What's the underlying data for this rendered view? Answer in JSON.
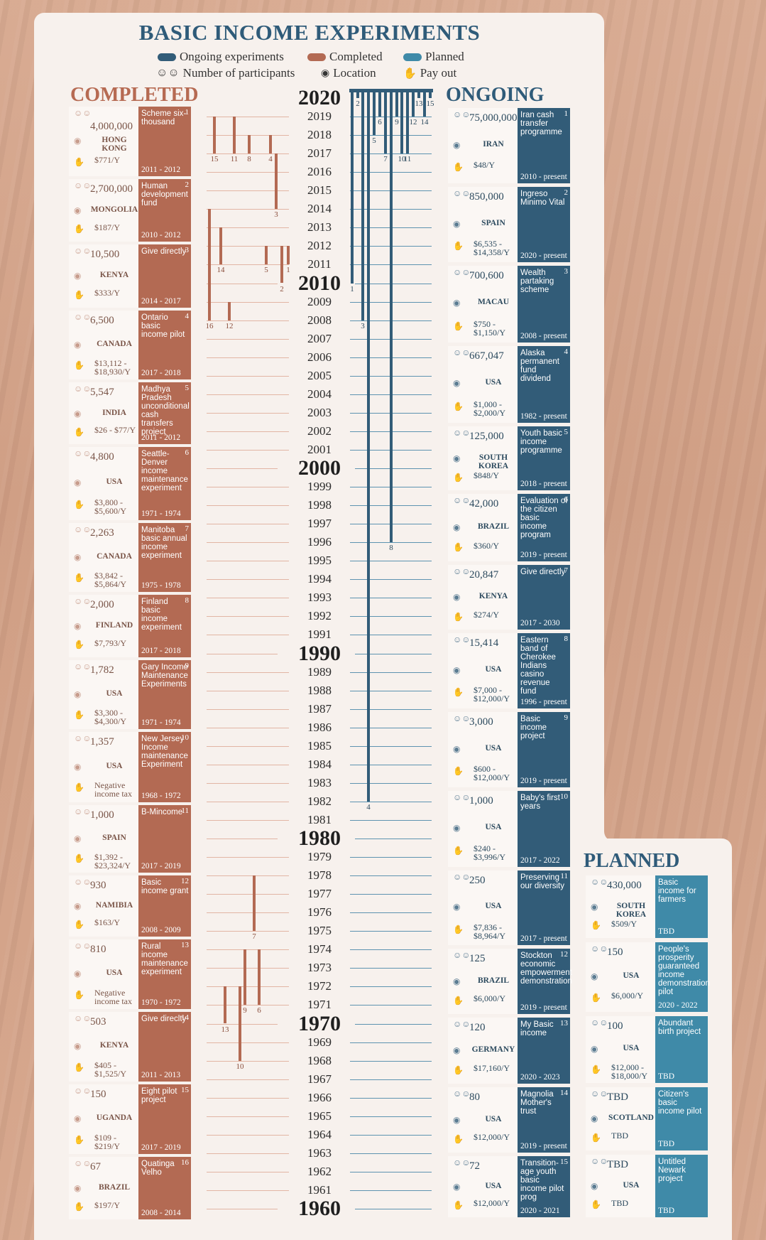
{
  "title": "BASIC INCOME EXPERIMENTS",
  "legend": {
    "ongoing": "Ongoing experiments",
    "completed": "Completed",
    "planned": "Planned",
    "participants": "Number of participants",
    "location": "Location",
    "payout": "Pay out"
  },
  "colors": {
    "completed": "#b36a53",
    "ongoing": "#325c78",
    "planned": "#3f8aa8"
  },
  "icons": [
    "people-icon",
    "location-pin-icon",
    "money-hand-icon"
  ],
  "headers": {
    "completed": "COMPLETED",
    "ongoing": "ONGOING",
    "planned": "PLANNED"
  },
  "years": [
    "2020",
    "2019",
    "2018",
    "2017",
    "2016",
    "2015",
    "2014",
    "2013",
    "2012",
    "2011",
    "2010",
    "2009",
    "2008",
    "2007",
    "2006",
    "2005",
    "2004",
    "2003",
    "2002",
    "2001",
    "2000",
    "1999",
    "1998",
    "1997",
    "1996",
    "1995",
    "1994",
    "1993",
    "1992",
    "1991",
    "1990",
    "1989",
    "1988",
    "1987",
    "1986",
    "1985",
    "1984",
    "1983",
    "1982",
    "1981",
    "1980",
    "1979",
    "1978",
    "1977",
    "1976",
    "1975",
    "1974",
    "1973",
    "1972",
    "1971",
    "1970",
    "1969",
    "1968",
    "1967",
    "1966",
    "1965",
    "1964",
    "1963",
    "1962",
    "1961",
    "1960"
  ],
  "completed": [
    {
      "n": "1",
      "participants": "4,000,000",
      "location": "HONG KONG",
      "payout": "$771/Y",
      "name": "Scheme six-thousand",
      "period": "2011 - 2012",
      "start": 2011,
      "end": 2012
    },
    {
      "n": "2",
      "participants": "2,700,000",
      "location": "MONGOLIA",
      "payout": "$187/Y",
      "name": "Human development fund",
      "period": "2010 - 2012",
      "start": 2010,
      "end": 2012
    },
    {
      "n": "3",
      "participants": "10,500",
      "location": "KENYA",
      "payout": "$333/Y",
      "name": "Give directly",
      "period": "2014 - 2017",
      "start": 2014,
      "end": 2017
    },
    {
      "n": "4",
      "participants": "6,500",
      "location": "CANADA",
      "payout": "$13,112 - $18,930/Y",
      "name": "Ontario basic income pilot",
      "period": "2017 - 2018",
      "start": 2017,
      "end": 2018
    },
    {
      "n": "5",
      "participants": "5,547",
      "location": "INDIA",
      "payout": "$26 - $77/Y",
      "name": "Madhya Pradesh unconditional cash transfers project",
      "period": "2011 - 2012",
      "start": 2011,
      "end": 2012
    },
    {
      "n": "6",
      "participants": "4,800",
      "location": "USA",
      "payout": "$3,800 - $5,600/Y",
      "name": "Seattle-Denver income maintenance experiment",
      "period": "1971 - 1974",
      "start": 1971,
      "end": 1974
    },
    {
      "n": "7",
      "participants": "2,263",
      "location": "CANADA",
      "payout": "$3,842 - $5,864/Y",
      "name": "Manitoba basic annual income experiment",
      "period": "1975 - 1978",
      "start": 1975,
      "end": 1978
    },
    {
      "n": "8",
      "participants": "2,000",
      "location": "FINLAND",
      "payout": "$7,793/Y",
      "name": "Finland basic income experiment",
      "period": "2017 - 2018",
      "start": 2017,
      "end": 2018
    },
    {
      "n": "9",
      "participants": "1,782",
      "location": "USA",
      "payout": "$3,300 - $4,300/Y",
      "name": "Gary Income Maintenance Experiments",
      "period": "1971 - 1974",
      "start": 1971,
      "end": 1974
    },
    {
      "n": "10",
      "participants": "1,357",
      "location": "USA",
      "payout": "Negative income tax",
      "name": "New Jersey Income maintenance Experiment",
      "period": "1968 - 1972",
      "start": 1968,
      "end": 1972
    },
    {
      "n": "11",
      "participants": "1,000",
      "location": "SPAIN",
      "payout": "$1,392 - $23,324/Y",
      "name": "B-Mincome",
      "period": "2017 - 2019",
      "start": 2017,
      "end": 2019
    },
    {
      "n": "12",
      "participants": "930",
      "location": "NAMIBIA",
      "payout": "$163/Y",
      "name": "Basic income grant",
      "period": "2008 - 2009",
      "start": 2008,
      "end": 2009
    },
    {
      "n": "13",
      "participants": "810",
      "location": "USA",
      "payout": "Negative income tax",
      "name": "Rural income maintenance experiment",
      "period": "1970 - 1972",
      "start": 1970,
      "end": 1972
    },
    {
      "n": "14",
      "participants": "503",
      "location": "KENYA",
      "payout": "$405 - $1,525/Y",
      "name": "Give direclty",
      "period": "2011 - 2013",
      "start": 2011,
      "end": 2013
    },
    {
      "n": "15",
      "participants": "150",
      "location": "UGANDA",
      "payout": "$109 - $219/Y",
      "name": "Eight pilot project",
      "period": "2017 - 2019",
      "start": 2017,
      "end": 2019
    },
    {
      "n": "16",
      "participants": "67",
      "location": "BRAZIL",
      "payout": "$197/Y",
      "name": "Quatinga Velho",
      "period": "2008 - 2014",
      "start": 2008,
      "end": 2014
    }
  ],
  "ongoing": [
    {
      "n": "1",
      "participants": "75,000,000",
      "location": "IRAN",
      "payout": "$48/Y",
      "name": "Iran cash transfer programme",
      "period": "2010 - present",
      "start": 2010
    },
    {
      "n": "2",
      "participants": "850,000",
      "location": "SPAIN",
      "payout": "$6,535 - $14,358/Y",
      "name": "Ingreso Minimo Vital",
      "period": "2020 - present",
      "start": 2020
    },
    {
      "n": "3",
      "participants": "700,600",
      "location": "MACAU",
      "payout": "$750 - $1,150/Y",
      "name": "Wealth partaking scheme",
      "period": "2008 - present",
      "start": 2008
    },
    {
      "n": "4",
      "participants": "667,047",
      "location": "USA",
      "payout": "$1,000 - $2,000/Y",
      "name": "Alaska permanent fund dividend",
      "period": "1982 - present",
      "start": 1982
    },
    {
      "n": "5",
      "participants": "125,000",
      "location": "SOUTH KOREA",
      "payout": "$848/Y",
      "name": "Youth basic income programme",
      "period": "2018 - present",
      "start": 2018
    },
    {
      "n": "6",
      "participants": "42,000",
      "location": "BRAZIL",
      "payout": "$360/Y",
      "name": "Evaluation of the citizen basic income program",
      "period": "2019 - present",
      "start": 2019
    },
    {
      "n": "7",
      "participants": "20,847",
      "location": "KENYA",
      "payout": "$274/Y",
      "name": "Give directly",
      "period": "2017 - 2030",
      "start": 2017
    },
    {
      "n": "8",
      "participants": "15,414",
      "location": "USA",
      "payout": "$7,000 - $12,000/Y",
      "name": "Eastern band of Cherokee Indians casino revenue fund",
      "period": "1996 - present",
      "start": 1996
    },
    {
      "n": "9",
      "participants": "3,000",
      "location": "USA",
      "payout": "$600 - $12,000/Y",
      "name": "Basic income project",
      "period": "2019 - present",
      "start": 2019
    },
    {
      "n": "10",
      "participants": "1,000",
      "location": "USA",
      "payout": "$240 - $3,996/Y",
      "name": "Baby's first years",
      "period": "2017 - 2022",
      "start": 2017
    },
    {
      "n": "11",
      "participants": "250",
      "location": "USA",
      "payout": "$7,836 - $8,964/Y",
      "name": "Preserving our diversity",
      "period": "2017 - present",
      "start": 2017
    },
    {
      "n": "12",
      "participants": "125",
      "location": "BRAZIL",
      "payout": "$6,000/Y",
      "name": "Stockton economic empowerment demonstration",
      "period": "2019 - present",
      "start": 2019
    },
    {
      "n": "13",
      "participants": "120",
      "location": "GERMANY",
      "payout": "$17,160/Y",
      "name": "My Basic income",
      "period": "2020 - 2023",
      "start": 2020
    },
    {
      "n": "14",
      "participants": "80",
      "location": "USA",
      "payout": "$12,000/Y",
      "name": "Magnolia Mother's trust",
      "period": "2019 - present",
      "start": 2019
    },
    {
      "n": "15",
      "participants": "72",
      "location": "USA",
      "payout": "$12,000/Y",
      "name": "Transition-age youth basic income pilot prog",
      "period": "2020 - 2021",
      "start": 2020
    }
  ],
  "planned": [
    {
      "participants": "430,000",
      "location": "SOUTH KOREA",
      "payout": "$509/Y",
      "name": "Basic income for farmers",
      "period": "TBD"
    },
    {
      "participants": "150",
      "location": "USA",
      "payout": "$6,000/Y",
      "name": "People's prosperity guaranteed income demonstration pilot",
      "period": "2020 - 2022"
    },
    {
      "participants": "100",
      "location": "USA",
      "payout": "$12,000 - $18,000/Y",
      "name": "Abundant birth project",
      "period": "TBD"
    },
    {
      "participants": "TBD",
      "location": "SCOTLAND",
      "payout": "TBD",
      "name": "Citizen's basic income pilot",
      "period": "TBD"
    },
    {
      "participants": "TBD",
      "location": "USA",
      "payout": "TBD",
      "name": "Untitled Newark project",
      "period": "TBD"
    }
  ]
}
